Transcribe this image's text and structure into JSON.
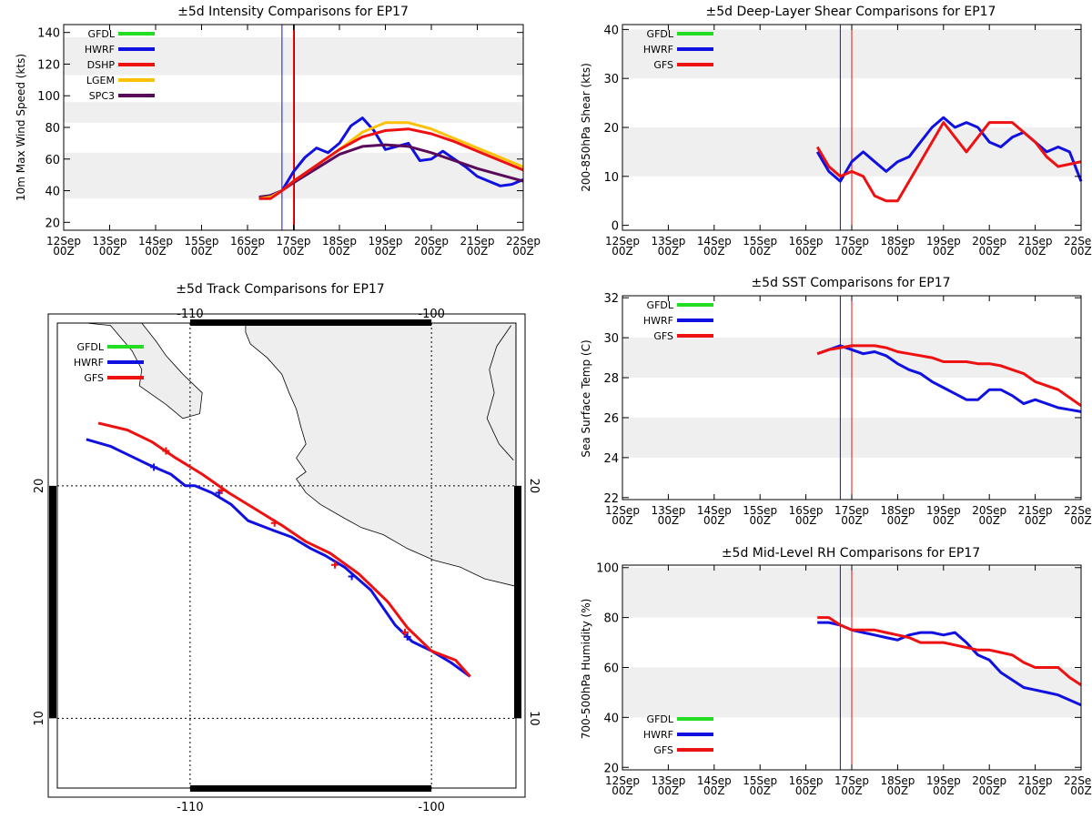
{
  "colors": {
    "GFDL": "#22dd22",
    "HWRF": "#1010e0",
    "GFS": "#ee1111",
    "DSHP": "#ee1111",
    "LGEM": "#ffc107",
    "SPC3": "#5a0a5a",
    "band": "#efefef",
    "land": "#eeeeee"
  },
  "date_ticks": [
    "12Sep",
    "13Sep",
    "14Sep",
    "15Sep",
    "16Sep",
    "17Sep",
    "18Sep",
    "19Sep",
    "20Sep",
    "21Sep",
    "22Sep"
  ],
  "hour_tick": "00Z",
  "chart_data": [
    {
      "id": "intensity",
      "type": "line",
      "title": "±5d Intensity Comparisons for EP17",
      "ylabel": "10m Max Wind Speed (kts)",
      "xlim": [
        0,
        10
      ],
      "ylim": [
        15,
        145
      ],
      "yticks": [
        20,
        40,
        60,
        80,
        100,
        120,
        140
      ],
      "bands": [
        [
          35,
          64
        ],
        [
          83,
          96
        ],
        [
          113,
          137
        ]
      ],
      "vlines": [
        {
          "x": 4.75,
          "color": "HWRF"
        },
        {
          "x": 5.0,
          "color": "DSHP"
        },
        {
          "x": 5.02,
          "color": "SPC3"
        }
      ],
      "legend": [
        "GFDL",
        "HWRF",
        "DSHP",
        "LGEM",
        "SPC3"
      ],
      "series": [
        {
          "name": "HWRF",
          "x": [
            4.25,
            4.5,
            4.75,
            5.0,
            5.25,
            5.5,
            5.75,
            6.0,
            6.25,
            6.5,
            6.75,
            7.0,
            7.25,
            7.5,
            7.75,
            8.0,
            8.25,
            8.5,
            8.75,
            9.0,
            9.25,
            9.5,
            9.75,
            10.0
          ],
          "y": [
            35,
            37,
            40,
            52,
            61,
            67,
            64,
            70,
            81,
            86,
            78,
            66,
            68,
            70,
            59,
            60,
            65,
            60,
            55,
            49,
            46,
            43,
            44,
            47
          ]
        },
        {
          "name": "SPC3",
          "x": [
            4.25,
            4.5,
            4.75,
            5.0,
            5.5,
            6.0,
            6.5,
            7.0,
            7.5,
            8.0,
            8.5,
            9.0,
            9.5,
            10.0
          ],
          "y": [
            36,
            37,
            40,
            45,
            54,
            63,
            68,
            69,
            68,
            64,
            59,
            54,
            50,
            46
          ]
        },
        {
          "name": "LGEM",
          "x": [
            4.25,
            4.5,
            4.75,
            5.0,
            5.5,
            6.0,
            6.5,
            7.0,
            7.5,
            8.0,
            8.5,
            9.0,
            9.5,
            10.0
          ],
          "y": [
            35,
            36,
            40,
            46,
            56,
            66,
            77,
            83,
            83,
            79,
            73,
            67,
            61,
            55
          ]
        },
        {
          "name": "DSHP",
          "x": [
            4.25,
            4.5,
            4.75,
            5.0,
            5.5,
            6.0,
            6.5,
            7.0,
            7.5,
            8.0,
            8.5,
            9.0,
            9.5,
            10.0
          ],
          "y": [
            35,
            35,
            40,
            46,
            56,
            66,
            74,
            78,
            79,
            76,
            71,
            65,
            59,
            53
          ]
        }
      ]
    },
    {
      "id": "shear",
      "type": "line",
      "title": "±5d Deep-Layer Shear Comparisons for EP17",
      "ylabel": "200-850hPa Shear (kts)",
      "xlim": [
        0,
        10
      ],
      "ylim": [
        -1,
        41
      ],
      "yticks": [
        0,
        10,
        20,
        30,
        40
      ],
      "bands": [
        [
          10,
          20
        ],
        [
          30,
          40
        ]
      ],
      "vlines": [
        {
          "x": 4.75,
          "color": "HWRF"
        },
        {
          "x": 5.0,
          "color": "GFS"
        }
      ],
      "legend": [
        "GFDL",
        "HWRF",
        "GFS"
      ],
      "series": [
        {
          "name": "HWRF",
          "x": [
            4.25,
            4.5,
            4.75,
            5.0,
            5.25,
            5.5,
            5.75,
            6.0,
            6.25,
            6.5,
            6.75,
            7.0,
            7.25,
            7.5,
            7.75,
            8.0,
            8.25,
            8.5,
            8.75,
            9.0,
            9.25,
            9.5,
            9.75,
            10.0
          ],
          "y": [
            15,
            11,
            9,
            13,
            15,
            13,
            11,
            13,
            14,
            17,
            20,
            22,
            20,
            21,
            20,
            17,
            16,
            18,
            19,
            17,
            15,
            16,
            15,
            9
          ]
        },
        {
          "name": "GFS",
          "x": [
            4.25,
            4.5,
            4.75,
            5.0,
            5.25,
            5.5,
            5.75,
            6.0,
            6.5,
            7.0,
            7.5,
            8.0,
            8.5,
            9.0,
            9.25,
            9.5,
            9.75,
            10.0
          ],
          "y": [
            16,
            12,
            10,
            11,
            10,
            6,
            5,
            5,
            13,
            21,
            15,
            21,
            21,
            17,
            14,
            12,
            12.5,
            13
          ]
        }
      ]
    },
    {
      "id": "sst",
      "type": "line",
      "title": "±5d SST Comparisons for EP17",
      "ylabel": "Sea Surface Temp (C)",
      "xlim": [
        0,
        10
      ],
      "ylim": [
        21.9,
        32.1
      ],
      "yticks": [
        22,
        24,
        26,
        28,
        30,
        32
      ],
      "bands": [
        [
          24,
          26
        ],
        [
          28,
          30
        ]
      ],
      "vlines": [
        {
          "x": 4.75,
          "color": "HWRF"
        },
        {
          "x": 5.0,
          "color": "GFS"
        }
      ],
      "legend": [
        "GFDL",
        "HWRF",
        "GFS"
      ],
      "series": [
        {
          "name": "HWRF",
          "x": [
            4.25,
            4.5,
            4.75,
            5.0,
            5.25,
            5.5,
            5.75,
            6.0,
            6.25,
            6.5,
            6.75,
            7.0,
            7.25,
            7.5,
            7.75,
            8.0,
            8.25,
            8.5,
            8.75,
            9.0,
            9.25,
            9.5,
            9.75,
            10.0
          ],
          "y": [
            29.2,
            29.4,
            29.6,
            29.4,
            29.2,
            29.3,
            29.1,
            28.7,
            28.4,
            28.2,
            27.8,
            27.5,
            27.2,
            26.9,
            26.9,
            27.4,
            27.4,
            27.1,
            26.7,
            26.9,
            26.7,
            26.5,
            26.4,
            26.3
          ]
        },
        {
          "name": "GFS",
          "x": [
            4.25,
            4.5,
            4.75,
            5.0,
            5.25,
            5.5,
            5.75,
            6.0,
            6.25,
            6.5,
            6.75,
            7.0,
            7.25,
            7.5,
            7.75,
            8.0,
            8.25,
            8.5,
            8.75,
            9.0,
            9.25,
            9.5,
            9.75,
            10.0
          ],
          "y": [
            29.2,
            29.4,
            29.5,
            29.6,
            29.6,
            29.6,
            29.5,
            29.3,
            29.2,
            29.1,
            29.0,
            28.8,
            28.8,
            28.8,
            28.7,
            28.7,
            28.6,
            28.4,
            28.2,
            27.8,
            27.6,
            27.4,
            27.0,
            26.6
          ]
        }
      ]
    },
    {
      "id": "rh",
      "type": "line",
      "title": "±5d Mid-Level RH Comparisons for EP17",
      "ylabel": "700-500hPa Humidity (%)",
      "xlim": [
        0,
        10
      ],
      "ylim": [
        19,
        101
      ],
      "yticks": [
        20,
        40,
        60,
        80,
        100
      ],
      "bands": [
        [
          40,
          60
        ],
        [
          80,
          100
        ]
      ],
      "vlines": [
        {
          "x": 4.75,
          "color": "HWRF"
        },
        {
          "x": 5.0,
          "color": "GFS"
        }
      ],
      "legend": [
        "GFDL",
        "HWRF",
        "GFS"
      ],
      "series": [
        {
          "name": "HWRF",
          "x": [
            4.25,
            4.5,
            4.75,
            5.0,
            5.25,
            5.5,
            5.75,
            6.0,
            6.25,
            6.5,
            6.75,
            7.0,
            7.25,
            7.5,
            7.75,
            8.0,
            8.25,
            8.5,
            8.75,
            9.0,
            9.25,
            9.5,
            9.75,
            10.0
          ],
          "y": [
            78,
            78,
            77,
            75,
            74,
            73,
            72,
            71,
            73,
            74,
            74,
            73,
            74,
            70,
            65,
            63,
            58,
            55,
            52,
            51,
            50,
            49,
            47,
            45
          ]
        },
        {
          "name": "GFS",
          "x": [
            4.25,
            4.5,
            4.75,
            5.0,
            5.25,
            5.5,
            5.75,
            6.0,
            6.25,
            6.5,
            6.75,
            7.0,
            7.25,
            7.5,
            7.75,
            8.0,
            8.25,
            8.5,
            8.75,
            9.0,
            9.25,
            9.5,
            9.75,
            10.0
          ],
          "y": [
            80,
            80,
            77,
            75,
            75,
            75,
            74,
            73,
            72,
            70,
            70,
            70,
            69,
            68,
            67,
            67,
            66,
            65,
            62,
            60,
            60,
            60,
            56,
            53
          ]
        }
      ]
    },
    {
      "id": "track",
      "type": "map-track",
      "title": "±5d Track Comparisons for EP17",
      "lon_range": [
        -115.5,
        -96.5
      ],
      "lat_range": [
        7,
        27
      ],
      "lon_ticks": [
        -110,
        -100
      ],
      "lon_tick_labels": [
        "-110",
        "-100"
      ],
      "lat_ticks": [
        10,
        20
      ],
      "lat_tick_labels": [
        "10",
        "20"
      ],
      "legend": [
        "GFDL",
        "HWRF",
        "GFS"
      ],
      "series": [
        {
          "name": "HWRF",
          "lon": [
            -114.3,
            -113.3,
            -112.3,
            -111.7,
            -110.8,
            -110.2,
            -109.8,
            -109.1,
            -108.3,
            -107.6,
            -106.6,
            -105.8,
            -105.0,
            -104.4,
            -103.6,
            -102.5,
            -101.5,
            -100.8,
            -100.0,
            -99.2,
            -98.4
          ],
          "lat": [
            22.0,
            21.7,
            21.2,
            20.9,
            20.5,
            20.0,
            20.0,
            19.7,
            19.2,
            18.5,
            18.1,
            17.8,
            17.3,
            17.0,
            16.5,
            15.5,
            14.0,
            13.3,
            12.9,
            12.4,
            11.8
          ],
          "markers": [
            [
              -111.5,
              20.8
            ],
            [
              -108.8,
              19.7
            ],
            [
              -103.3,
              16.1
            ],
            [
              -101.0,
              13.5
            ]
          ]
        },
        {
          "name": "GFS",
          "lon": [
            -113.8,
            -112.6,
            -111.6,
            -110.6,
            -109.5,
            -108.4,
            -107.3,
            -106.2,
            -105.2,
            -104.2,
            -103.0,
            -101.8,
            -101.0,
            -100.0,
            -99.0,
            -98.4
          ],
          "lat": [
            22.7,
            22.4,
            21.9,
            21.2,
            20.5,
            19.7,
            19.0,
            18.3,
            17.6,
            17.1,
            16.2,
            15.0,
            13.9,
            12.9,
            12.5,
            11.8
          ],
          "markers": [
            [
              -111.0,
              21.5
            ],
            [
              -108.7,
              19.8
            ],
            [
              -106.5,
              18.4
            ],
            [
              -104.0,
              16.6
            ],
            [
              -101.1,
              13.7
            ]
          ]
        }
      ],
      "coast_north": [
        [
          -107.7,
          26.6
        ],
        [
          -107.5,
          26.1
        ],
        [
          -106.8,
          25.5
        ],
        [
          -106.2,
          24.8
        ],
        [
          -105.9,
          24.0
        ],
        [
          -105.6,
          23.3
        ],
        [
          -105.4,
          22.5
        ],
        [
          -105.2,
          21.8
        ],
        [
          -105.6,
          21.2
        ],
        [
          -105.2,
          20.6
        ],
        [
          -105.6,
          20.3
        ],
        [
          -105.2,
          19.7
        ],
        [
          -104.6,
          19.2
        ],
        [
          -103.6,
          18.6
        ],
        [
          -102.9,
          18.2
        ],
        [
          -102.0,
          17.9
        ],
        [
          -101.0,
          17.3
        ],
        [
          -99.9,
          16.8
        ],
        [
          -98.8,
          16.5
        ],
        [
          -97.8,
          16.0
        ],
        [
          -96.6,
          15.7
        ]
      ],
      "coast_gulf": [
        [
          -96.7,
          26.9
        ],
        [
          -97.3,
          26.0
        ],
        [
          -97.6,
          25.0
        ],
        [
          -97.4,
          24.0
        ],
        [
          -97.7,
          22.9
        ],
        [
          -97.2,
          21.8
        ],
        [
          -96.6,
          21.1
        ]
      ],
      "baja": [
        [
          -114.3,
          27.0
        ],
        [
          -113.3,
          26.9
        ],
        [
          -112.4,
          25.8
        ],
        [
          -112.0,
          25.0
        ],
        [
          -112.1,
          24.3
        ],
        [
          -111.0,
          23.5
        ],
        [
          -110.3,
          22.9
        ],
        [
          -109.6,
          23.1
        ],
        [
          -109.5,
          24.0
        ],
        [
          -110.3,
          24.8
        ],
        [
          -111.0,
          25.6
        ],
        [
          -111.4,
          26.2
        ],
        [
          -112.0,
          27.0
        ]
      ]
    }
  ]
}
